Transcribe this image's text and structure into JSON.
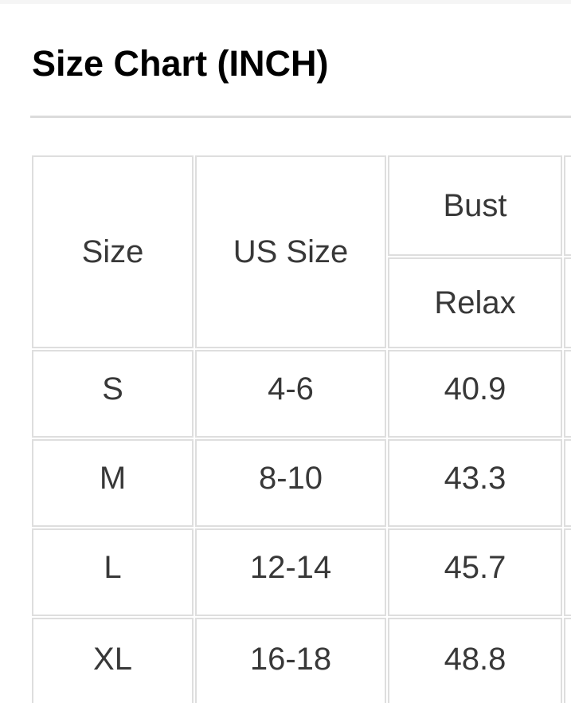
{
  "page": {
    "title": "Size Chart (INCH)"
  },
  "table": {
    "header": {
      "size_label": "Size",
      "us_size_label": "US Size",
      "bust_label": "Bust",
      "relax_label": "Relax"
    },
    "rows": [
      {
        "size": "S",
        "us_size": "4-6",
        "bust_relax": "40.9"
      },
      {
        "size": "M",
        "us_size": "8-10",
        "bust_relax": "43.3"
      },
      {
        "size": "L",
        "us_size": "12-14",
        "bust_relax": "45.7"
      },
      {
        "size": "XL",
        "us_size": "16-18",
        "bust_relax": "48.8"
      }
    ],
    "colors": {
      "dark_header_bg": "#333333",
      "dark_header_text": "#ffffff",
      "light_cell_bg": "#f4f4f5",
      "cell_border": "#dedede",
      "text": "#383838"
    }
  }
}
